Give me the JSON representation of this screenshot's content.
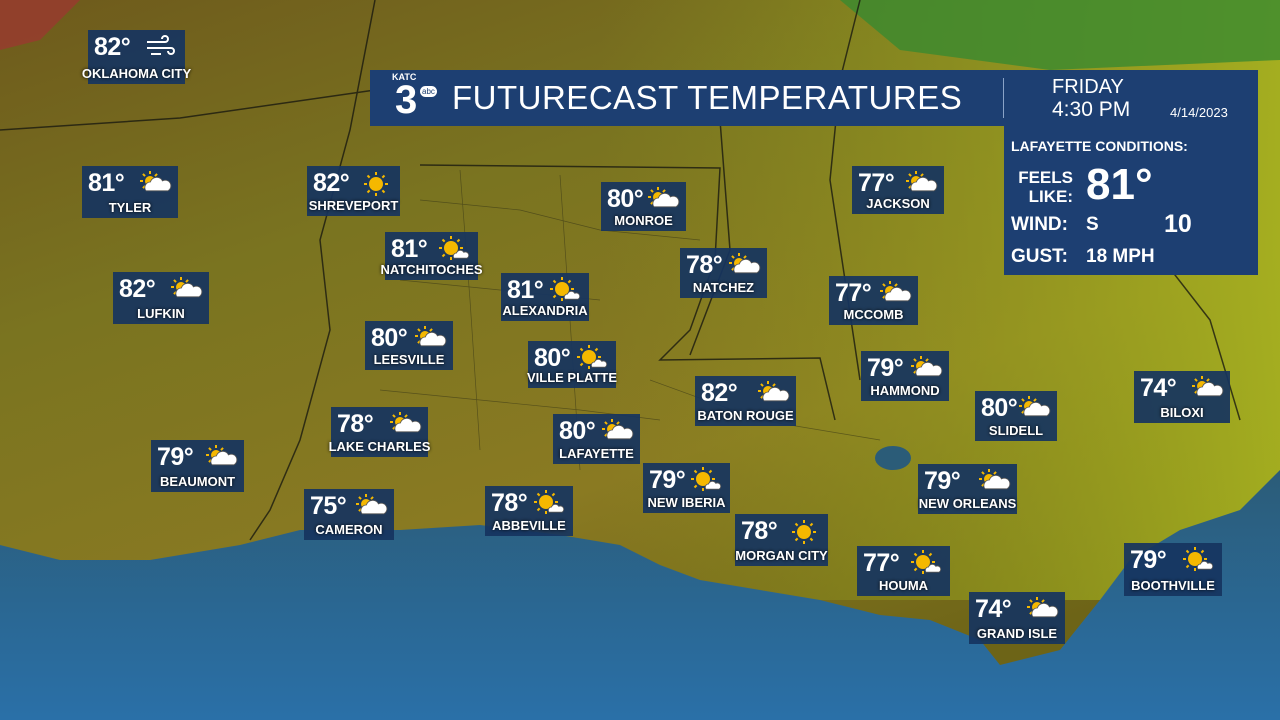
{
  "header": {
    "logo": {
      "station": "KATC",
      "number": "3",
      "network": "abc"
    },
    "title": "FUTURECAST TEMPERATURES",
    "day": "FRIDAY",
    "time": "4:30 PM",
    "date": "4/14/2023"
  },
  "conditions": {
    "heading": "LAFAYETTE CONDITIONS:",
    "feels_like_label": "FEELS LIKE:",
    "feels_like": "81°",
    "wind_label": "WIND:",
    "wind_dir": "S",
    "wind_speed": "10",
    "gust_label": "GUST:",
    "gust": "18 MPH"
  },
  "cities": [
    {
      "name": "OKLAHOMA CITY",
      "temp": "82°",
      "icon": "wind"
    },
    {
      "name": "TYLER",
      "temp": "81°",
      "icon": "partly"
    },
    {
      "name": "SHREVEPORT",
      "temp": "82°",
      "icon": "sun"
    },
    {
      "name": "MONROE",
      "temp": "80°",
      "icon": "partly"
    },
    {
      "name": "JACKSON",
      "temp": "77°",
      "icon": "partly"
    },
    {
      "name": "NATCHITOCHES",
      "temp": "81°",
      "icon": "mostly-sun"
    },
    {
      "name": "NATCHEZ",
      "temp": "78°",
      "icon": "partly"
    },
    {
      "name": "LUFKIN",
      "temp": "82°",
      "icon": "partly"
    },
    {
      "name": "ALEXANDRIA",
      "temp": "81°",
      "icon": "mostly-sun"
    },
    {
      "name": "MCCOMB",
      "temp": "77°",
      "icon": "partly"
    },
    {
      "name": "LEESVILLE",
      "temp": "80°",
      "icon": "partly"
    },
    {
      "name": "VILLE PLATTE",
      "temp": "80°",
      "icon": "mostly-sun"
    },
    {
      "name": "HAMMOND",
      "temp": "79°",
      "icon": "partly"
    },
    {
      "name": "BATON ROUGE",
      "temp": "82°",
      "icon": "partly"
    },
    {
      "name": "BILOXI",
      "temp": "74°",
      "icon": "partly"
    },
    {
      "name": "SLIDELL",
      "temp": "80°",
      "icon": "partly"
    },
    {
      "name": "LAKE CHARLES",
      "temp": "78°",
      "icon": "partly"
    },
    {
      "name": "LAFAYETTE",
      "temp": "80°",
      "icon": "partly"
    },
    {
      "name": "BEAUMONT",
      "temp": "79°",
      "icon": "partly"
    },
    {
      "name": "NEW IBERIA",
      "temp": "79°",
      "icon": "mostly-sun"
    },
    {
      "name": "NEW ORLEANS",
      "temp": "79°",
      "icon": "partly"
    },
    {
      "name": "CAMERON",
      "temp": "75°",
      "icon": "partly"
    },
    {
      "name": "ABBEVILLE",
      "temp": "78°",
      "icon": "mostly-sun"
    },
    {
      "name": "MORGAN CITY",
      "temp": "78°",
      "icon": "sun"
    },
    {
      "name": "HOUMA",
      "temp": "77°",
      "icon": "mostly-sun"
    },
    {
      "name": "BOOTHVILLE",
      "temp": "79°",
      "icon": "mostly-sun"
    },
    {
      "name": "GRAND ISLE",
      "temp": "74°",
      "icon": "partly"
    }
  ]
}
